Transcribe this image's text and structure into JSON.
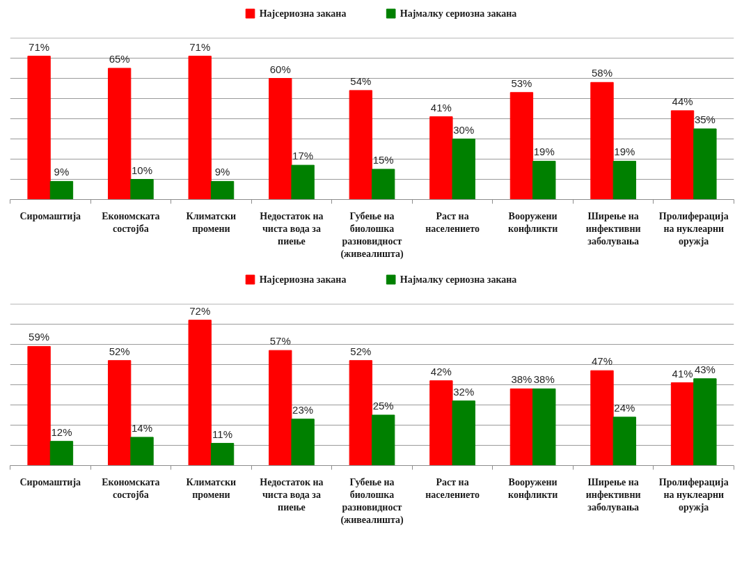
{
  "chart_data": [
    {
      "type": "bar",
      "categories": [
        "Сиромаштија",
        "Економската состојба",
        "Климатски промени",
        "Недостаток на чиста вода за пиење",
        "Губење на биолошка разновидност (живеалишта)",
        "Раст на населението",
        "Вооружени конфликти",
        "Ширење на инфективни заболувања",
        "Пролиферација на нуклеарни оружја"
      ],
      "series": [
        {
          "name": "Најсериозна закана",
          "color": "#ff0000",
          "values": [
            71,
            65,
            71,
            60,
            54,
            41,
            53,
            58,
            44
          ],
          "value_labels": [
            "71%",
            "65%",
            "71%",
            "60%",
            "54%",
            "41%",
            "53%",
            "58%",
            "44%"
          ]
        },
        {
          "name": "Најмалку сериозна закана",
          "color": "#008000",
          "values": [
            9,
            10,
            9,
            17,
            15,
            30,
            19,
            19,
            35
          ],
          "value_labels": [
            "9%",
            "10%",
            "9%",
            "17%",
            "15%",
            "30%",
            "19%",
            "19%",
            "35%"
          ]
        }
      ],
      "ylim": [
        0,
        80
      ],
      "yticks": [
        {
          "value": 0,
          "label": null
        },
        {
          "value": 10,
          "label": null
        },
        {
          "value": 20,
          "label": null
        },
        {
          "value": 30,
          "label": null
        },
        {
          "value": 40,
          "label": null
        },
        {
          "value": 50,
          "label": null
        },
        {
          "value": 60,
          "label": null
        },
        {
          "value": 70,
          "label": null
        },
        {
          "value": 80,
          "label": null
        }
      ],
      "grid": "y",
      "legend": "top",
      "tick_labels": "x"
    },
    {
      "type": "bar",
      "categories": [
        "Сиромаштија",
        "Економската состојба",
        "Климатски промени",
        "Недостаток на чиста вода за пиење",
        "Губење на биолошка разновидност (живеалишта)",
        "Раст на населението",
        "Вооружени конфликти",
        "Ширење на инфективни заболувања",
        "Пролиферација на нуклеарни оружја"
      ],
      "series": [
        {
          "name": "Најсериозна закана",
          "color": "#ff0000",
          "values": [
            59,
            52,
            72,
            57,
            52,
            42,
            38,
            47,
            41
          ],
          "value_labels": [
            "59%",
            "52%",
            "72%",
            "57%",
            "52%",
            "42%",
            "38%",
            "47%",
            "41%"
          ]
        },
        {
          "name": "Најмалку сериозна закана",
          "color": "#008000",
          "values": [
            12,
            14,
            11,
            23,
            25,
            32,
            38,
            24,
            43
          ],
          "value_labels": [
            "12%",
            "14%",
            "11%",
            "23%",
            "25%",
            "32%",
            "38%",
            "24%",
            "43%"
          ]
        }
      ],
      "ylim": [
        0,
        80
      ],
      "yticks": [
        {
          "value": 0,
          "label": null
        },
        {
          "value": 10,
          "label": null
        },
        {
          "value": 20,
          "label": null
        },
        {
          "value": 30,
          "label": null
        },
        {
          "value": 40,
          "label": null
        },
        {
          "value": 50,
          "label": null
        },
        {
          "value": 60,
          "label": null
        },
        {
          "value": 70,
          "label": null
        },
        {
          "value": 80,
          "label": null
        }
      ],
      "grid": "y",
      "legend": "top",
      "tick_labels": "x"
    }
  ]
}
